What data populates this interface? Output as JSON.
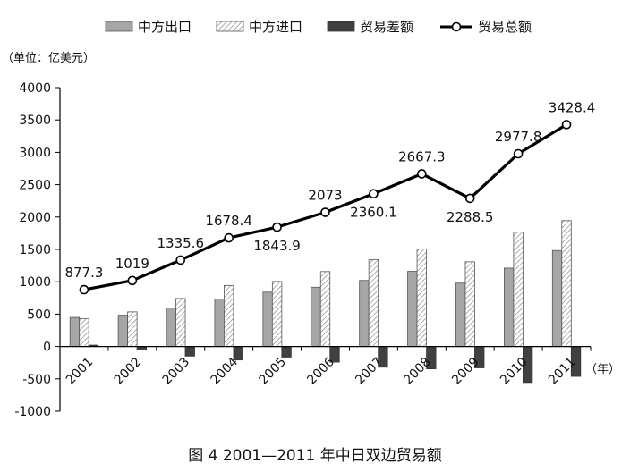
{
  "chart_data": {
    "type": "bar",
    "title": "图 4  2001—2011 年中日双边贸易额",
    "unit_label": "（单位：亿美元）",
    "x_unit_label": "（年）",
    "categories": [
      "2001",
      "2002",
      "2003",
      "2004",
      "2005",
      "2006",
      "2007",
      "2008",
      "2009",
      "2010",
      "2011"
    ],
    "ylim": [
      -1000,
      4000
    ],
    "y_ticks": [
      -1000,
      -500,
      0,
      500,
      1000,
      1500,
      2000,
      2500,
      3000,
      3500,
      4000
    ],
    "grid": false,
    "legend_position": "top",
    "series": [
      {
        "name": "中方出口",
        "type": "bar",
        "color": "#a6a6a6",
        "values": [
          449,
          484,
          594,
          735,
          840,
          916,
          1020,
          1161,
          979,
          1211,
          1483
        ]
      },
      {
        "name": "中方进口",
        "type": "bar",
        "color": "#ffffff",
        "pattern": "hatched",
        "values": [
          428,
          535,
          742,
          943,
          1004,
          1157,
          1340,
          1506,
          1309,
          1767,
          1945
        ]
      },
      {
        "name": "贸易差额",
        "type": "bar",
        "color": "#404040",
        "values": [
          21,
          -51,
          -148,
          -208,
          -164,
          -241,
          -320,
          -345,
          -330,
          -556,
          -462
        ]
      },
      {
        "name": "贸易总额",
        "type": "line",
        "color": "#000000",
        "values": [
          877.3,
          1019,
          1335.6,
          1678.4,
          1843.9,
          2073,
          2360.1,
          2667.3,
          2288.5,
          2977.8,
          3428.4
        ],
        "labels": [
          "877.3",
          "1019",
          "1335.6",
          "1678.4",
          "1843.9",
          "2073",
          "2360.1",
          "2667.3",
          "2288.5",
          "2977.8",
          "3428.4"
        ]
      }
    ]
  }
}
